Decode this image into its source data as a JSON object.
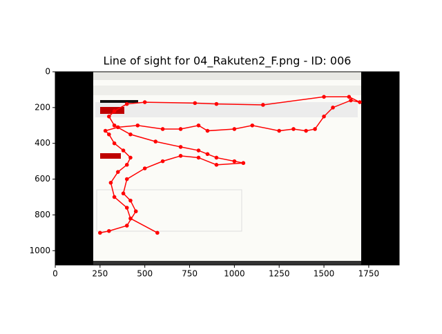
{
  "chart_data": {
    "type": "line",
    "title": "Line of sight for 04_Rakuten2_F.png - ID: 006",
    "color": "#ff0000",
    "x": [
      570,
      420,
      400,
      330,
      310,
      350,
      400,
      420,
      380,
      330,
      300,
      280,
      350,
      460,
      600,
      700,
      800,
      850,
      1000,
      1100,
      1250,
      1330,
      1400,
      1450,
      1500,
      1550,
      1650,
      1700,
      1640,
      1500,
      1160,
      900,
      780,
      500,
      400,
      330,
      300,
      330,
      420,
      560,
      700,
      800,
      850,
      900,
      1000,
      1050,
      900,
      800,
      700,
      600,
      500,
      400,
      380,
      420,
      450,
      400,
      300,
      250
    ],
    "values": [
      900,
      820,
      760,
      700,
      620,
      560,
      520,
      480,
      440,
      400,
      350,
      330,
      310,
      300,
      320,
      320,
      300,
      330,
      320,
      300,
      330,
      320,
      330,
      320,
      250,
      200,
      160,
      170,
      140,
      140,
      185,
      180,
      175,
      170,
      180,
      220,
      250,
      300,
      350,
      390,
      420,
      440,
      460,
      480,
      500,
      510,
      520,
      480,
      470,
      500,
      540,
      600,
      680,
      720,
      780,
      860,
      890,
      900
    ],
    "xlim": [
      0,
      1920
    ],
    "ylim": [
      1080,
      0
    ],
    "xticks": [
      0,
      250,
      500,
      750,
      1000,
      1250,
      1500,
      1750
    ],
    "yticks": [
      0,
      200,
      400,
      600,
      800,
      1000
    ]
  }
}
